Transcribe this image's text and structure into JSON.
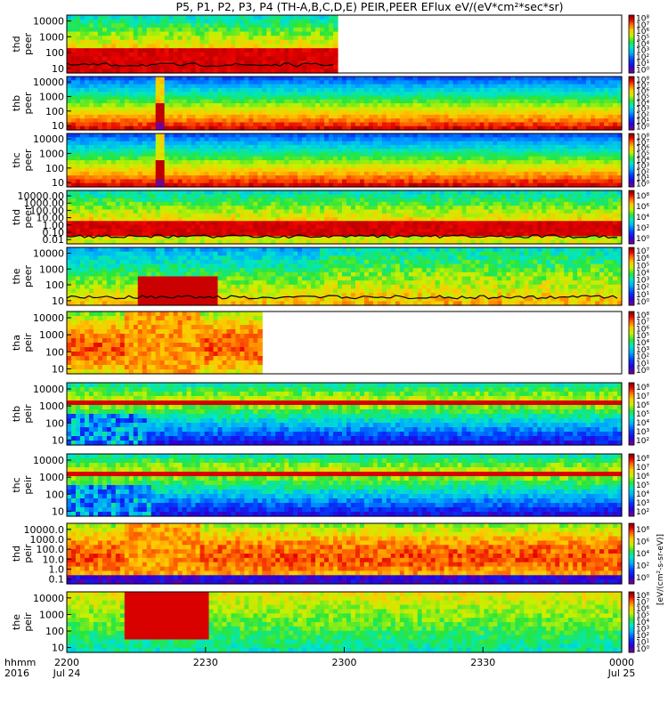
{
  "chart_data": {
    "type": "heatmap",
    "title": "P5, P1, P2, P3, P4 (TH-A,B,C,D,E) PEIR,PEER EFlux eV/(eV*cm²*sec*sr)",
    "colorbar_unit": "[eV/(cm²-s-sr-eV)]",
    "colorbar_unit_detail": "eV/(cm^2-s-sr-eV)",
    "x_axis": {
      "row_label_1": "hhmm",
      "row_label_2": "2016",
      "ticks": [
        {
          "time": "2200",
          "date": "Jul 24"
        },
        {
          "time": "2230",
          "date": ""
        },
        {
          "time": "2300",
          "date": ""
        },
        {
          "time": "2330",
          "date": ""
        },
        {
          "time": "0000",
          "date": "Jul 25"
        }
      ],
      "range": [
        "2016-07-24 22:00",
        "2016-07-25 00:00"
      ]
    },
    "panels": [
      {
        "probe": "thd",
        "species": "peer",
        "y_label": "thd peer",
        "yticks": [
          "10",
          "100",
          "1000",
          "10000"
        ],
        "cbar_ticks": [
          "10⁰",
          "10¹",
          "10²",
          "10³",
          "10⁴",
          "10⁵",
          "10⁶",
          "10⁷",
          "10⁸"
        ],
        "data_end_frac": 0.49,
        "style": "wide",
        "has_line": true
      },
      {
        "probe": "thb",
        "species": "peer",
        "y_label": "thb peer",
        "yticks": [
          "10",
          "100",
          "1000",
          "10000"
        ],
        "cbar_ticks": [
          "10⁰",
          "10¹",
          "10²",
          "10³",
          "10⁴",
          "10⁵",
          "10⁶",
          "10⁷",
          "10⁸"
        ],
        "data_end_frac": 1.0,
        "style": "smooth",
        "gap": [
          0.155,
          0.175
        ]
      },
      {
        "probe": "thc",
        "species": "peer",
        "y_label": "thc peer",
        "yticks": [
          "10",
          "100",
          "1000",
          "10000"
        ],
        "cbar_ticks": [
          "10⁰",
          "10¹",
          "10²",
          "10³",
          "10⁴",
          "10⁵",
          "10⁶",
          "10⁷",
          "10⁸"
        ],
        "data_end_frac": 1.0,
        "style": "smooth",
        "gap": [
          0.155,
          0.175
        ]
      },
      {
        "probe": "thd",
        "species": "peer",
        "y_label": "thd peer",
        "yticks": [
          "0.01",
          "0.10",
          "1.00",
          "10.00",
          "100.00",
          "1000.00",
          "10000.00"
        ],
        "cbar_ticks": [
          "10⁰",
          "10²",
          "10⁴",
          "10⁶",
          "10⁸"
        ],
        "data_end_frac": 1.0,
        "style": "wide",
        "has_line": true
      },
      {
        "probe": "the",
        "species": "peer",
        "y_label": "the peer",
        "yticks": [
          "10",
          "100",
          "1000",
          "10000"
        ],
        "cbar_ticks": [
          "10⁰",
          "10¹",
          "10²",
          "10³",
          "10⁴",
          "10⁵",
          "10⁶",
          "10⁷"
        ],
        "data_end_frac": 1.0,
        "style": "burst",
        "has_line": true
      },
      {
        "probe": "tha",
        "species": "peir",
        "y_label": "tha peir",
        "yticks": [
          "10",
          "100",
          "1000",
          "10000"
        ],
        "cbar_ticks": [
          "10⁰",
          "10¹",
          "10²",
          "10³",
          "10⁴",
          "10⁵",
          "10⁶",
          "10⁷",
          "10⁸"
        ],
        "data_end_frac": 0.35,
        "style": "ion_wide"
      },
      {
        "probe": "thb",
        "species": "peir",
        "y_label": "thb peir",
        "yticks": [
          "10",
          "100",
          "1000",
          "10000"
        ],
        "cbar_ticks": [
          "10²",
          "10³",
          "10⁴",
          "10⁵",
          "10⁶",
          "10⁷",
          "10⁸"
        ],
        "data_end_frac": 1.0,
        "style": "ion_band",
        "noisy_until": 0.14
      },
      {
        "probe": "thc",
        "species": "peir",
        "y_label": "thc peir",
        "yticks": [
          "10",
          "100",
          "1000",
          "10000"
        ],
        "cbar_ticks": [
          "10²",
          "10³",
          "10⁴",
          "10⁵",
          "10⁶",
          "10⁷",
          "10⁸"
        ],
        "data_end_frac": 1.0,
        "style": "ion_band",
        "noisy_until": 0.15
      },
      {
        "probe": "thd",
        "species": "peir",
        "y_label": "thd peir",
        "yticks": [
          "0.1",
          "1.0",
          "10.0",
          "100.0",
          "1000.0",
          "10000.0"
        ],
        "cbar_ticks": [
          "10⁰",
          "10²",
          "10⁴",
          "10⁶",
          "10⁸"
        ],
        "data_end_frac": 1.0,
        "style": "ion_wide"
      },
      {
        "probe": "the",
        "species": "peir",
        "y_label": "the peir",
        "yticks": [
          "10",
          "100",
          "1000",
          "10000"
        ],
        "cbar_ticks": [
          "10⁰",
          "10¹",
          "10²",
          "10³",
          "10⁴",
          "10⁵",
          "10⁶",
          "10⁷",
          "10⁸"
        ],
        "data_end_frac": 1.0,
        "style": "ion_burst"
      }
    ]
  }
}
